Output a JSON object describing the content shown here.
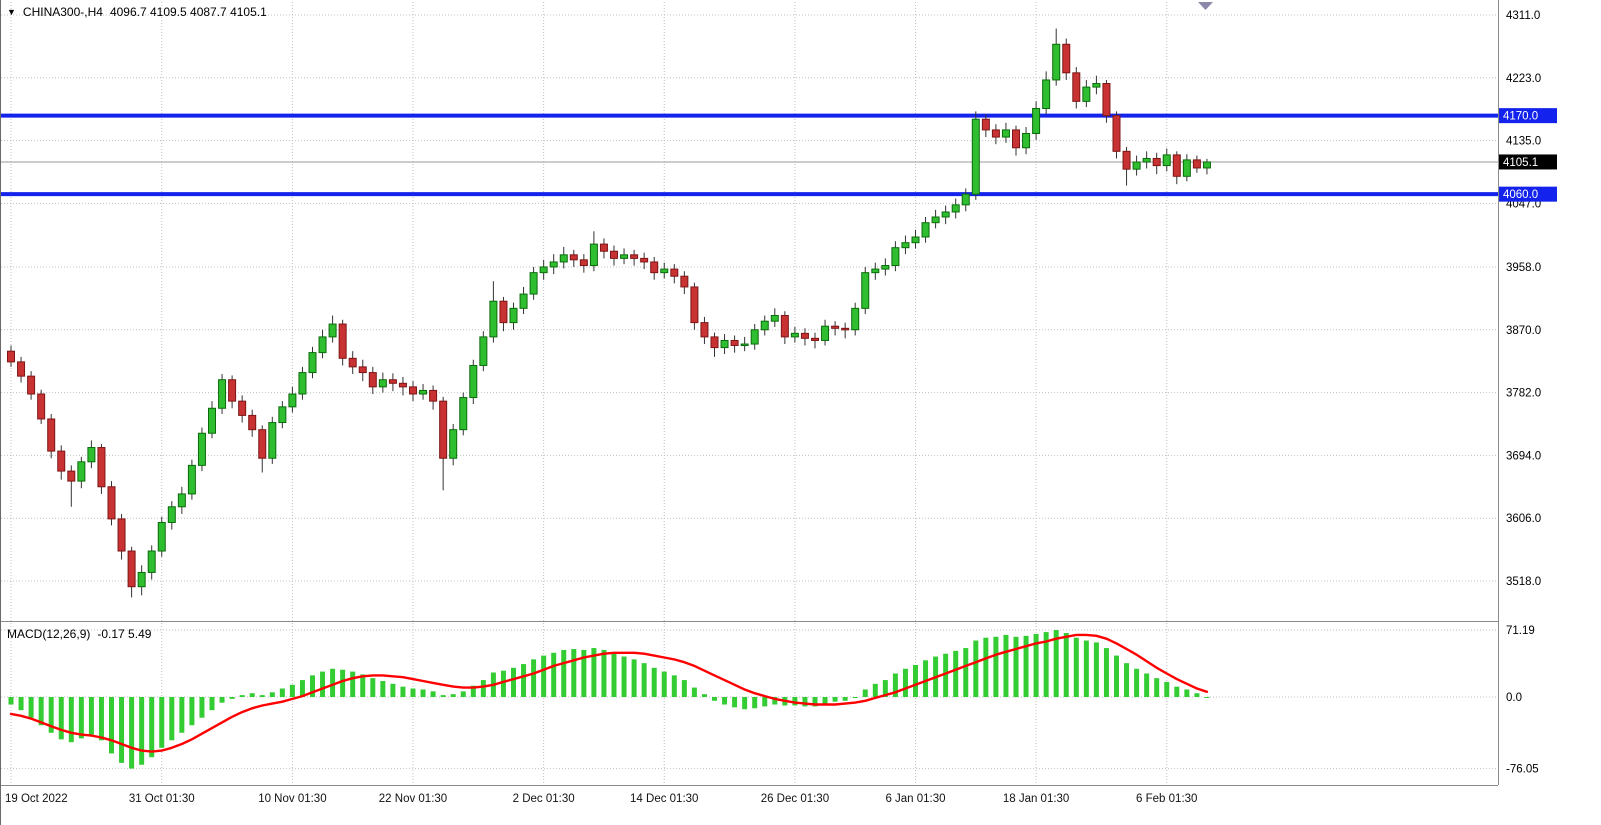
{
  "header": {
    "symbol_period": "CHINA300-,H4",
    "ohlc": "4096.7 4109.5 4087.7 4105.1"
  },
  "colors": {
    "bull": "#2fbe2f",
    "bear": "#c83232",
    "bull_border": "#0b6b0b",
    "bear_border": "#7d1616",
    "wick": "#333333",
    "hline_blue": "#1322ec",
    "grid": "#bfbfc9",
    "signal_red": "#ff0000",
    "histogram_green": "#33cc33",
    "badge_current_bg": "#000000",
    "axis_text": "#000000",
    "separator": "#8a8a8a"
  },
  "chart_data": {
    "type": "candlestick",
    "title": "CHINA300-,H4",
    "timeframe": "H4",
    "grid": "dotted",
    "price_axis": {
      "min": 3518.0,
      "max": 4311.0,
      "ticks": [
        4311.0,
        4223.0,
        4135.0,
        4047.0,
        3958.0,
        3870.0,
        3782.0,
        3694.0,
        3606.0,
        3518.0
      ]
    },
    "x_labels": [
      {
        "text": "19 Oct 2022",
        "bar": 0
      },
      {
        "text": "31 Oct 01:30",
        "bar": 15
      },
      {
        "text": "10 Nov 01:30",
        "bar": 28
      },
      {
        "text": "22 Nov 01:30",
        "bar": 40
      },
      {
        "text": "2 Dec 01:30",
        "bar": 53
      },
      {
        "text": "14 Dec 01:30",
        "bar": 65
      },
      {
        "text": "26 Dec 01:30",
        "bar": 78
      },
      {
        "text": "6 Jan 01:30",
        "bar": 90
      },
      {
        "text": "18 Jan 01:30",
        "bar": 102
      },
      {
        "text": "6 Feb 01:30",
        "bar": 115
      }
    ],
    "hlines": [
      {
        "value": 4170.0,
        "label": "4170.0"
      },
      {
        "value": 4060.0,
        "label": "4060.0"
      }
    ],
    "current_price": {
      "value": 4105.1,
      "label": "4105.1"
    },
    "candles": [
      [
        3840,
        3848,
        3818,
        3825
      ],
      [
        3825,
        3832,
        3796,
        3805
      ],
      [
        3805,
        3812,
        3772,
        3780
      ],
      [
        3780,
        3786,
        3738,
        3745
      ],
      [
        3745,
        3752,
        3690,
        3700
      ],
      [
        3700,
        3708,
        3660,
        3672
      ],
      [
        3672,
        3680,
        3622,
        3658
      ],
      [
        3658,
        3692,
        3648,
        3685
      ],
      [
        3685,
        3715,
        3676,
        3705
      ],
      [
        3705,
        3710,
        3640,
        3650
      ],
      [
        3650,
        3658,
        3596,
        3605
      ],
      [
        3605,
        3612,
        3548,
        3560
      ],
      [
        3560,
        3566,
        3495,
        3510
      ],
      [
        3510,
        3540,
        3498,
        3530
      ],
      [
        3530,
        3568,
        3520,
        3560
      ],
      [
        3560,
        3608,
        3552,
        3600
      ],
      [
        3600,
        3630,
        3590,
        3622
      ],
      [
        3622,
        3650,
        3612,
        3640
      ],
      [
        3640,
        3688,
        3632,
        3680
      ],
      [
        3680,
        3733,
        3672,
        3725
      ],
      [
        3725,
        3770,
        3718,
        3760
      ],
      [
        3760,
        3808,
        3752,
        3800
      ],
      [
        3800,
        3806,
        3760,
        3770
      ],
      [
        3770,
        3778,
        3740,
        3750
      ],
      [
        3750,
        3758,
        3720,
        3730
      ],
      [
        3730,
        3736,
        3670,
        3690
      ],
      [
        3690,
        3748,
        3682,
        3740
      ],
      [
        3740,
        3770,
        3732,
        3762
      ],
      [
        3762,
        3790,
        3754,
        3780
      ],
      [
        3780,
        3818,
        3772,
        3810
      ],
      [
        3810,
        3846,
        3802,
        3838
      ],
      [
        3838,
        3870,
        3830,
        3860
      ],
      [
        3860,
        3890,
        3852,
        3878
      ],
      [
        3878,
        3884,
        3820,
        3830
      ],
      [
        3830,
        3840,
        3808,
        3818
      ],
      [
        3818,
        3828,
        3798,
        3810
      ],
      [
        3810,
        3818,
        3780,
        3790
      ],
      [
        3790,
        3810,
        3782,
        3800
      ],
      [
        3800,
        3809,
        3784,
        3795
      ],
      [
        3795,
        3804,
        3778,
        3790
      ],
      [
        3790,
        3798,
        3770,
        3780
      ],
      [
        3780,
        3794,
        3772,
        3785
      ],
      [
        3785,
        3792,
        3758,
        3770
      ],
      [
        3770,
        3776,
        3645,
        3690
      ],
      [
        3690,
        3738,
        3680,
        3730
      ],
      [
        3730,
        3782,
        3722,
        3775
      ],
      [
        3775,
        3828,
        3766,
        3820
      ],
      [
        3820,
        3868,
        3812,
        3860
      ],
      [
        3860,
        3938,
        3852,
        3910
      ],
      [
        3910,
        3916,
        3868,
        3880
      ],
      [
        3880,
        3908,
        3870,
        3900
      ],
      [
        3900,
        3930,
        3892,
        3920
      ],
      [
        3920,
        3958,
        3912,
        3950
      ],
      [
        3950,
        3968,
        3940,
        3958
      ],
      [
        3958,
        3976,
        3948,
        3965
      ],
      [
        3965,
        3986,
        3956,
        3975
      ],
      [
        3975,
        3982,
        3958,
        3968
      ],
      [
        3968,
        3976,
        3950,
        3960
      ],
      [
        3960,
        4008,
        3952,
        3990
      ],
      [
        3990,
        3998,
        3970,
        3980
      ],
      [
        3980,
        3988,
        3960,
        3970
      ],
      [
        3970,
        3984,
        3962,
        3975
      ],
      [
        3975,
        3982,
        3960,
        3970
      ],
      [
        3970,
        3978,
        3955,
        3965
      ],
      [
        3965,
        3972,
        3940,
        3950
      ],
      [
        3950,
        3964,
        3942,
        3955
      ],
      [
        3955,
        3962,
        3935,
        3945
      ],
      [
        3945,
        3952,
        3920,
        3930
      ],
      [
        3930,
        3936,
        3870,
        3880
      ],
      [
        3880,
        3888,
        3850,
        3860
      ],
      [
        3860,
        3866,
        3832,
        3845
      ],
      [
        3845,
        3864,
        3836,
        3855
      ],
      [
        3855,
        3862,
        3838,
        3848
      ],
      [
        3848,
        3860,
        3840,
        3850
      ],
      [
        3850,
        3878,
        3842,
        3870
      ],
      [
        3870,
        3890,
        3862,
        3882
      ],
      [
        3882,
        3900,
        3874,
        3890
      ],
      [
        3890,
        3896,
        3850,
        3860
      ],
      [
        3860,
        3874,
        3852,
        3865
      ],
      [
        3865,
        3872,
        3848,
        3858
      ],
      [
        3858,
        3866,
        3844,
        3855
      ],
      [
        3855,
        3884,
        3848,
        3875
      ],
      [
        3875,
        3882,
        3862,
        3872
      ],
      [
        3872,
        3880,
        3858,
        3870
      ],
      [
        3870,
        3908,
        3862,
        3900
      ],
      [
        3900,
        3958,
        3892,
        3950
      ],
      [
        3950,
        3964,
        3940,
        3955
      ],
      [
        3955,
        3970,
        3946,
        3960
      ],
      [
        3960,
        3994,
        3952,
        3985
      ],
      [
        3985,
        4002,
        3976,
        3992
      ],
      [
        3992,
        4010,
        3984,
        4000
      ],
      [
        4000,
        4028,
        3992,
        4020
      ],
      [
        4020,
        4038,
        4012,
        4028
      ],
      [
        4028,
        4044,
        4018,
        4035
      ],
      [
        4035,
        4054,
        4026,
        4045
      ],
      [
        4045,
        4068,
        4036,
        4060
      ],
      [
        4060,
        4176,
        4052,
        4165
      ],
      [
        4165,
        4172,
        4140,
        4150
      ],
      [
        4150,
        4158,
        4130,
        4140
      ],
      [
        4140,
        4160,
        4132,
        4150
      ],
      [
        4150,
        4156,
        4114,
        4125
      ],
      [
        4125,
        4154,
        4116,
        4145
      ],
      [
        4145,
        4190,
        4136,
        4180
      ],
      [
        4180,
        4232,
        4172,
        4220
      ],
      [
        4220,
        4292,
        4212,
        4270
      ],
      [
        4270,
        4278,
        4220,
        4230
      ],
      [
        4230,
        4238,
        4180,
        4190
      ],
      [
        4190,
        4220,
        4182,
        4210
      ],
      [
        4210,
        4226,
        4200,
        4215
      ],
      [
        4215,
        4220,
        4160,
        4170
      ],
      [
        4170,
        4176,
        4110,
        4120
      ],
      [
        4120,
        4126,
        4072,
        4095
      ],
      [
        4095,
        4114,
        4086,
        4105
      ],
      [
        4105,
        4120,
        4096,
        4110
      ],
      [
        4110,
        4118,
        4088,
        4100
      ],
      [
        4100,
        4124,
        4092,
        4115
      ],
      [
        4115,
        4120,
        4074,
        4085
      ],
      [
        4085,
        4116,
        4078,
        4108
      ],
      [
        4108,
        4114,
        4090,
        4096.7
      ],
      [
        4096.7,
        4109.5,
        4087.7,
        4105.1
      ]
    ],
    "macd": {
      "label": "MACD(12,26,9)",
      "values_label": "-0.17 5.49",
      "axis_ticks": [
        {
          "label": "71.19",
          "value": 71.19
        },
        {
          "label": "0.0",
          "value": 0
        },
        {
          "label": "-76.05",
          "value": -76.05
        }
      ],
      "histogram": [
        -8,
        -14,
        -22,
        -30,
        -38,
        -45,
        -48,
        -44,
        -40,
        -46,
        -60,
        -70,
        -76.05,
        -72,
        -64,
        -54,
        -46,
        -38,
        -30,
        -22,
        -14,
        -6,
        -2,
        2,
        4,
        2,
        5,
        9,
        13,
        18,
        23,
        27,
        30,
        29,
        27,
        24,
        20,
        17,
        14,
        11,
        9,
        8,
        6,
        2,
        3,
        6,
        12,
        18,
        26,
        28,
        31,
        35,
        40,
        44,
        47,
        50,
        51,
        50,
        52,
        50,
        46,
        43,
        40,
        36,
        31,
        27,
        23,
        18,
        10,
        3,
        -4,
        -8,
        -11,
        -13,
        -12,
        -10,
        -8,
        -9,
        -9,
        -10,
        -10,
        -7,
        -5,
        -4,
        0,
        8,
        14,
        18,
        25,
        30,
        34,
        39,
        43,
        46,
        49,
        52,
        60,
        63,
        64,
        66,
        64,
        65,
        67,
        69,
        71.19,
        68,
        63,
        60,
        58,
        52,
        44,
        36,
        30,
        25,
        20,
        16,
        11,
        8,
        4,
        -0.17
      ],
      "signal": [
        -18,
        -20,
        -23,
        -27,
        -31,
        -35,
        -38,
        -40,
        -41,
        -43,
        -46,
        -50,
        -54,
        -57,
        -58,
        -57,
        -54,
        -50,
        -45,
        -39,
        -33,
        -27,
        -21,
        -16,
        -12,
        -9,
        -7,
        -5,
        -2,
        1,
        5,
        9,
        13,
        17,
        20,
        22,
        23,
        23,
        22,
        21,
        19,
        17,
        15,
        13,
        11,
        10,
        10,
        11,
        13,
        16,
        19,
        22,
        25,
        29,
        33,
        36,
        39,
        42,
        44,
        46,
        47,
        47,
        47,
        46,
        44,
        42,
        40,
        37,
        33,
        28,
        23,
        18,
        13,
        8,
        4,
        1,
        -2,
        -4,
        -6,
        -7,
        -8,
        -8,
        -8,
        -7,
        -6,
        -4,
        -1,
        2,
        5,
        9,
        13,
        17,
        21,
        25,
        29,
        33,
        37,
        41,
        45,
        48,
        51,
        54,
        57,
        59,
        62,
        64,
        66,
        66,
        65,
        62,
        57,
        51,
        45,
        38,
        31,
        25,
        19,
        14,
        9,
        5.49
      ]
    }
  }
}
